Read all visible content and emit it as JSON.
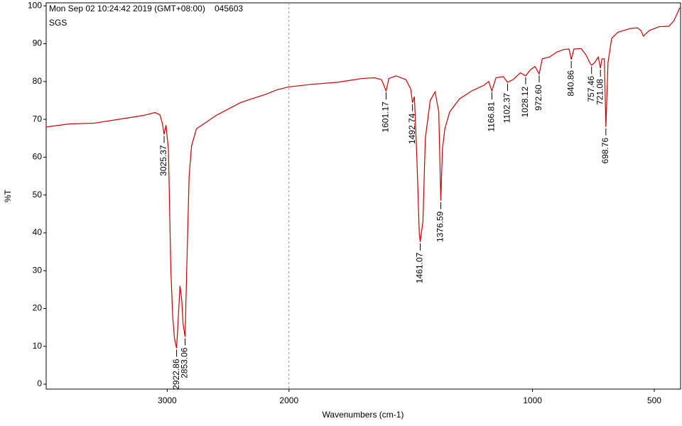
{
  "chart_data": {
    "type": "line",
    "header": "Mon Sep 02 10:24:42 2019 (GMT+08:00)",
    "sample_id": "045603",
    "subtitle": "SGS",
    "xlabel": "Wavenumbers (cm-1)",
    "ylabel": "%T",
    "color": "#cc0000",
    "xlim": [
      3994,
      392
    ],
    "ylim": [
      -1.3,
      100.8
    ],
    "x_break": 2000,
    "xticks": [
      3000,
      2000,
      1000,
      500
    ],
    "yticks": [
      0,
      10,
      20,
      30,
      40,
      50,
      60,
      70,
      80,
      90,
      100
    ],
    "x": [
      3990,
      3800,
      3600,
      3400,
      3200,
      3100,
      3060,
      3040,
      3025.37,
      3010,
      2990,
      2970,
      2955,
      2940,
      2922.86,
      2905,
      2895,
      2880,
      2870,
      2853.06,
      2840,
      2820,
      2800,
      2760,
      2700,
      2600,
      2400,
      2300,
      2200,
      2100,
      2000,
      1900,
      1800,
      1700,
      1650,
      1620,
      1601.17,
      1590,
      1560,
      1520,
      1500,
      1492.74,
      1485,
      1475,
      1465,
      1461.07,
      1450,
      1440,
      1420,
      1400,
      1385,
      1376.59,
      1370,
      1360,
      1340,
      1300,
      1250,
      1200,
      1180,
      1166.81,
      1150,
      1120,
      1102.37,
      1080,
      1050,
      1028.12,
      1010,
      990,
      972.6,
      960,
      930,
      900,
      870,
      850,
      840.86,
      830,
      800,
      780,
      765,
      757.46,
      745,
      730,
      721.08,
      715,
      705,
      698.76,
      690,
      675,
      650,
      600,
      570,
      555,
      545,
      520,
      480,
      440,
      420,
      395
    ],
    "values": [
      68,
      68.8,
      69,
      70,
      71,
      71.8,
      71.2,
      69,
      66,
      68.5,
      62,
      30,
      18,
      12,
      9.5,
      20,
      26,
      22,
      16,
      12.5,
      30,
      55,
      63,
      67.5,
      68.8,
      71,
      74.4,
      75.5,
      76.5,
      77.8,
      78.6,
      79.3,
      79.8,
      80.8,
      81,
      80.5,
      77.5,
      80.8,
      81.5,
      80.5,
      78,
      74.4,
      76,
      60,
      40,
      37.6,
      43,
      65,
      75,
      77.3,
      72,
      48.5,
      62,
      67.5,
      72,
      75.4,
      77.5,
      79,
      80,
      77.5,
      81,
      81.3,
      79.8,
      80.5,
      82.3,
      81.5,
      83,
      84,
      82,
      86,
      86.5,
      87.8,
      88.5,
      88.6,
      85.8,
      88.6,
      88.7,
      87,
      85,
      84.3,
      85,
      86.5,
      83.5,
      86,
      86,
      68,
      85,
      91.4,
      93,
      94,
      94.2,
      93.5,
      92,
      93.5,
      94.5,
      94.6,
      96,
      99.5
    ],
    "peaks": [
      3025.37,
      2922.86,
      2853.06,
      1601.17,
      1492.74,
      1461.07,
      1376.59,
      1166.81,
      1102.37,
      1028.12,
      {
        "value": 972.6,
        "label": "972.60"
      },
      840.86,
      757.46,
      721.08,
      698.76
    ]
  }
}
